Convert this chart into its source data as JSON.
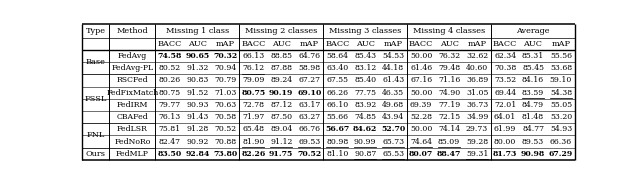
{
  "col_groups": [
    "Missing 1 class",
    "Missing 2 classes",
    "Missing 3 classes",
    "Missing 4 classes",
    "Average"
  ],
  "sub_cols": [
    "BACC",
    "AUC",
    "mAP"
  ],
  "methods": [
    "FedAvg",
    "FedAvg-PL",
    "RSCFed",
    "FedFixMatch",
    "FedIRM",
    "CBAFed",
    "FedLSR",
    "FedNoRo",
    "FedMLP"
  ],
  "types": [
    "Base",
    "Base",
    "FSSL",
    "FSSL",
    "FSSL",
    "FSSL",
    "FNL",
    "FNL",
    "Ours"
  ],
  "type_spans": [
    {
      "label": "Base",
      "rows": [
        0,
        1
      ]
    },
    {
      "label": "FSSL",
      "rows": [
        2,
        3,
        4,
        5
      ]
    },
    {
      "label": "FNL",
      "rows": [
        6,
        7
      ]
    },
    {
      "label": "Ours",
      "rows": [
        8
      ]
    }
  ],
  "rows": [
    [
      "74.58",
      "90.65",
      "70.32",
      "66.13",
      "88.85",
      "64.76",
      "58.64",
      "85.43",
      "54.53",
      "50.00",
      "76.32",
      "32.62",
      "62.34",
      "85.31",
      "55.56"
    ],
    [
      "80.52",
      "91.32",
      "70.94",
      "76.12",
      "87.88",
      "58.98",
      "63.40",
      "83.12",
      "44.18",
      "61.46",
      "79.48",
      "40.60",
      "70.38",
      "85.45",
      "53.68"
    ],
    [
      "80.26",
      "90.83",
      "70.79",
      "79.09",
      "89.24",
      "67.27",
      "67.55",
      "85.40",
      "61.43",
      "67.16",
      "71.16",
      "36.89",
      "73.52",
      "84.16",
      "59.10"
    ],
    [
      "80.75",
      "91.52",
      "71.03",
      "80.75",
      "90.19",
      "69.10",
      "66.26",
      "77.75",
      "46.35",
      "50.00",
      "74.90",
      "31.05",
      "69.44",
      "83.59",
      "54.38"
    ],
    [
      "79.77",
      "90.93",
      "70.63",
      "72.78",
      "87.12",
      "63.17",
      "66.10",
      "83.92",
      "49.68",
      "69.39",
      "77.19",
      "36.73",
      "72.01",
      "84.79",
      "55.05"
    ],
    [
      "76.13",
      "91.43",
      "70.58",
      "71.97",
      "87.50",
      "63.27",
      "55.66",
      "74.85",
      "43.94",
      "52.28",
      "72.15",
      "34.99",
      "64.01",
      "81.48",
      "53.20"
    ],
    [
      "75.81",
      "91.28",
      "70.52",
      "65.48",
      "89.04",
      "66.76",
      "56.67",
      "84.62",
      "52.70",
      "50.00",
      "74.14",
      "29.73",
      "61.99",
      "84.77",
      "54.93"
    ],
    [
      "82.47",
      "90.92",
      "70.88",
      "81.90",
      "91.12",
      "69.53",
      "80.98",
      "90.99",
      "65.73",
      "74.64",
      "85.09",
      "59.28",
      "80.00",
      "89.53",
      "66.36"
    ],
    [
      "83.50",
      "92.84",
      "73.80",
      "82.26",
      "91.75",
      "70.52",
      "81.10",
      "90.87",
      "65.53",
      "80.07",
      "88.47",
      "59.31",
      "81.73",
      "90.98",
      "67.29"
    ]
  ],
  "bold_cells": {
    "0": [
      0,
      1,
      2
    ],
    "3": [
      3,
      4,
      5
    ],
    "6": [
      6,
      7,
      8
    ],
    "8": [
      0,
      1,
      2,
      3,
      4,
      5,
      9,
      10,
      12,
      13,
      14
    ]
  },
  "underline_cells": {
    "1": [
      3
    ],
    "3": [
      13,
      14
    ],
    "7": [
      3,
      4,
      5,
      6,
      7,
      8,
      9,
      10
    ],
    "8": [
      7,
      8,
      11
    ]
  }
}
